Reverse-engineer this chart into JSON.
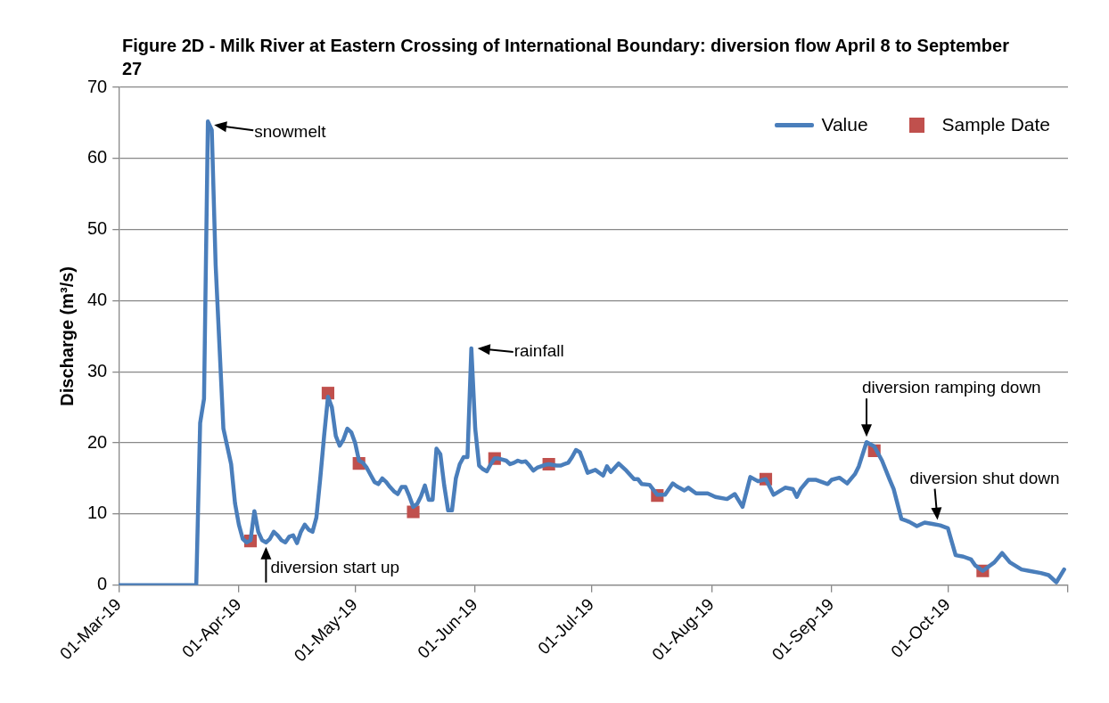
{
  "chart_data": {
    "type": "line",
    "title": "Figure 2D - Milk River at Eastern Crossing of International Boundary: diversion flow April 8 to September 27",
    "ylabel": "Discharge (m³/s)",
    "xlim": [
      "2019-03-01",
      "2019-11-01"
    ],
    "xticks": [
      {
        "value": "2019-03-01",
        "label": "01-Mar-19"
      },
      {
        "value": "2019-04-01",
        "label": "01-Apr-19"
      },
      {
        "value": "2019-05-01",
        "label": "01-May-19"
      },
      {
        "value": "2019-06-01",
        "label": "01-Jun-19"
      },
      {
        "value": "2019-07-01",
        "label": "01-Jul-19"
      },
      {
        "value": "2019-08-01",
        "label": "01-Aug-19"
      },
      {
        "value": "2019-09-01",
        "label": "01-Sep-19"
      },
      {
        "value": "2019-10-01",
        "label": "01-Oct-19"
      },
      {
        "value": "2019-11-01",
        "label": null
      }
    ],
    "ylim": [
      0,
      70
    ],
    "yticks": [
      0,
      10,
      20,
      30,
      40,
      50,
      60,
      70
    ],
    "grid": "y",
    "legend": "top right",
    "series": [
      {
        "name": "Value",
        "marker": "none",
        "color": "#4a7ebb",
        "x": [
          "2019-03-01",
          "2019-03-21",
          "2019-03-22",
          "2019-03-23",
          "2019-03-24",
          "2019-03-25",
          "2019-03-26",
          "2019-03-27",
          "2019-03-28",
          "2019-03-29",
          "2019-03-30",
          "2019-03-31",
          "2019-04-01",
          "2019-04-02",
          "2019-04-03",
          "2019-04-04",
          "2019-04-05",
          "2019-04-06",
          "2019-04-07",
          "2019-04-08",
          "2019-04-09",
          "2019-04-10",
          "2019-04-11",
          "2019-04-12",
          "2019-04-13",
          "2019-04-14",
          "2019-04-15",
          "2019-04-16",
          "2019-04-17",
          "2019-04-18",
          "2019-04-19",
          "2019-04-20",
          "2019-04-21",
          "2019-04-22",
          "2019-04-23",
          "2019-04-24",
          "2019-04-25",
          "2019-04-26",
          "2019-04-27",
          "2019-04-28",
          "2019-04-29",
          "2019-04-30",
          "2019-05-01",
          "2019-05-02",
          "2019-05-03",
          "2019-05-04",
          "2019-05-05",
          "2019-05-06",
          "2019-05-07",
          "2019-05-08",
          "2019-05-09",
          "2019-05-10",
          "2019-05-11",
          "2019-05-12",
          "2019-05-13",
          "2019-05-14",
          "2019-05-15",
          "2019-05-16",
          "2019-05-17",
          "2019-05-18",
          "2019-05-19",
          "2019-05-20",
          "2019-05-21",
          "2019-05-22",
          "2019-05-23",
          "2019-05-24",
          "2019-05-25",
          "2019-05-26",
          "2019-05-27",
          "2019-05-28",
          "2019-05-29",
          "2019-05-30",
          "2019-05-31",
          "2019-06-01",
          "2019-06-02",
          "2019-06-03",
          "2019-06-04",
          "2019-06-05",
          "2019-06-06",
          "2019-06-07",
          "2019-06-09",
          "2019-06-10",
          "2019-06-11",
          "2019-06-12",
          "2019-06-13",
          "2019-06-14",
          "2019-06-15",
          "2019-06-16",
          "2019-06-17",
          "2019-06-18",
          "2019-06-19",
          "2019-06-20",
          "2019-06-21",
          "2019-06-22",
          "2019-06-23",
          "2019-06-24",
          "2019-06-25",
          "2019-06-26",
          "2019-06-27",
          "2019-06-28",
          "2019-06-29",
          "2019-06-30",
          "2019-07-02",
          "2019-07-04",
          "2019-07-05",
          "2019-07-06",
          "2019-07-08",
          "2019-07-10",
          "2019-07-12",
          "2019-07-13",
          "2019-07-14",
          "2019-07-16",
          "2019-07-18",
          "2019-07-20",
          "2019-07-22",
          "2019-07-23",
          "2019-07-25",
          "2019-07-26",
          "2019-07-28",
          "2019-07-31",
          "2019-08-02",
          "2019-08-05",
          "2019-08-07",
          "2019-08-09",
          "2019-08-11",
          "2019-08-13",
          "2019-08-15",
          "2019-08-17",
          "2019-08-20",
          "2019-08-22",
          "2019-08-23",
          "2019-08-24",
          "2019-08-26",
          "2019-08-28",
          "2019-08-31",
          "2019-09-01",
          "2019-09-03",
          "2019-09-05",
          "2019-09-07",
          "2019-09-08",
          "2019-09-10",
          "2019-09-12",
          "2019-09-14",
          "2019-09-16",
          "2019-09-17",
          "2019-09-19",
          "2019-09-21",
          "2019-09-23",
          "2019-09-25",
          "2019-09-27",
          "2019-09-29",
          "2019-10-01",
          "2019-10-03",
          "2019-10-05",
          "2019-10-07",
          "2019-10-08",
          "2019-10-10",
          "2019-10-13",
          "2019-10-15",
          "2019-10-17",
          "2019-10-20",
          "2019-10-22",
          "2019-10-25",
          "2019-10-27",
          "2019-10-29",
          "2019-10-31"
        ],
        "values": [
          0,
          0,
          22.8,
          26.2,
          65.2,
          64,
          45,
          33.5,
          22,
          19.5,
          17,
          11.5,
          8.5,
          6.5,
          6,
          6.3,
          10.4,
          7.5,
          6.3,
          6.0,
          6.5,
          7.5,
          7,
          6.3,
          6.0,
          6.8,
          7.0,
          5.9,
          7.5,
          8.5,
          7.8,
          7.5,
          9.5,
          15,
          21,
          26.5,
          25,
          21,
          19.6,
          20.5,
          22,
          21.5,
          20,
          17.5,
          17.2,
          16.5,
          15.5,
          14.5,
          14.2,
          15,
          14.5,
          13.8,
          13.2,
          12.8,
          13.8,
          13.8,
          12.5,
          11.0,
          11.4,
          12.5,
          14,
          12,
          12,
          19.2,
          18.4,
          14,
          10.5,
          10.5,
          15,
          17,
          18,
          18,
          33.3,
          22,
          16.8,
          16.3,
          16,
          17,
          17.8,
          17.8,
          17.5,
          17.0,
          17.2,
          17.5,
          17.3,
          17.4,
          16.8,
          16.1,
          16.5,
          16.7,
          16.9,
          17.0,
          16.9,
          16.8,
          16.8,
          17,
          17.2,
          18,
          19,
          18.7,
          17.3,
          15.8,
          16.2,
          15.4,
          16.7,
          15.9,
          17.1,
          16.1,
          14.9,
          14.9,
          14.2,
          14.1,
          12.7,
          12.7,
          14.3,
          13.9,
          13.3,
          13.7,
          12.9,
          12.9,
          12.4,
          12.1,
          12.8,
          11.0,
          15.2,
          14.6,
          14.9,
          12.7,
          13.7,
          13.5,
          12.4,
          13.5,
          14.8,
          14.8,
          14.2,
          14.8,
          15.1,
          14.3,
          15.6,
          16.7,
          20.1,
          19.5,
          17.5,
          14.8,
          13.5,
          9.3,
          8.9,
          8.3,
          8.8,
          8.6,
          8.4,
          8.0,
          4.2,
          4.0,
          3.6,
          2.8,
          2.0,
          3.2,
          4.5,
          3.2,
          2.2,
          2.0,
          1.7,
          1.4,
          0.4,
          2.2
        ]
      },
      {
        "name": "Sample Date",
        "type": "scatter",
        "marker": "square",
        "color": "#c0504d",
        "x": [
          "2019-04-04",
          "2019-04-24",
          "2019-05-02",
          "2019-05-16",
          "2019-06-06",
          "2019-06-20",
          "2019-07-18",
          "2019-08-15",
          "2019-09-12",
          "2019-10-10"
        ],
        "values": [
          6.2,
          27.0,
          17.1,
          10.3,
          17.8,
          17.0,
          12.6,
          14.9,
          18.9,
          2.0
        ]
      }
    ],
    "annotations": [
      {
        "text": "snowmelt",
        "x": "2019-03-24",
        "y": 65.2
      },
      {
        "text": "rainfall",
        "x": "2019-05-31",
        "y": 33.3
      },
      {
        "text": "diversion start up",
        "x": "2019-04-08",
        "y": 6.0
      },
      {
        "text": "diversion ramping down",
        "x": "2019-09-10",
        "y": 20.1
      },
      {
        "text": "diversion shut down",
        "x": "2019-09-29",
        "y": 8.4
      }
    ]
  }
}
